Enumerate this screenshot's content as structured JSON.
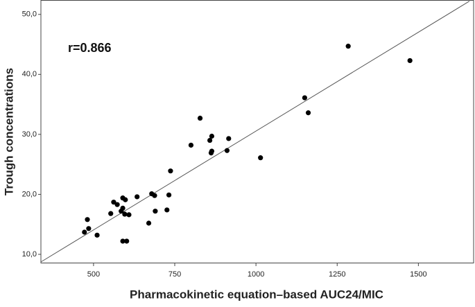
{
  "chart_data": {
    "type": "scatter",
    "x_label": "Pharmacokinetic equation–based AUC24/MIC",
    "y_label": "Trough concentrations",
    "annotation": "r=0.866",
    "color": "#000000",
    "x": [
      472,
      481,
      485,
      511,
      553,
      562,
      573,
      585,
      590,
      590,
      590,
      598,
      596,
      602,
      609,
      634,
      670,
      679,
      688,
      690,
      726,
      732,
      737,
      800,
      828,
      858,
      864,
      864,
      862,
      916,
      911,
      1014,
      1150,
      1161,
      1284,
      1474
    ],
    "values": [
      13.7,
      15.8,
      14.3,
      13.2,
      16.8,
      18.7,
      18.3,
      17.2,
      17.7,
      12.2,
      19.4,
      19.1,
      16.7,
      12.2,
      16.6,
      19.6,
      15.2,
      20.1,
      19.8,
      17.2,
      17.4,
      19.9,
      23.9,
      28.2,
      32.7,
      29.0,
      29.7,
      27.2,
      26.9,
      29.3,
      27.3,
      26.1,
      36.1,
      33.6,
      44.7,
      42.3
    ],
    "fit_line": {
      "x": [
        338,
        1657
      ],
      "y": [
        8.73,
        52.2
      ]
    },
    "xlim": [
      338,
      1670
    ],
    "ylim": [
      8.5,
      52.4
    ],
    "xticks": [
      500,
      750,
      1000,
      1250,
      1500
    ],
    "yticks": [
      {
        "value": 10,
        "label": "10,0"
      },
      {
        "value": 20,
        "label": "20,0"
      },
      {
        "value": 30,
        "label": "30,0"
      },
      {
        "value": 40,
        "label": "40,0"
      },
      {
        "value": 50,
        "label": "50,0"
      }
    ]
  }
}
